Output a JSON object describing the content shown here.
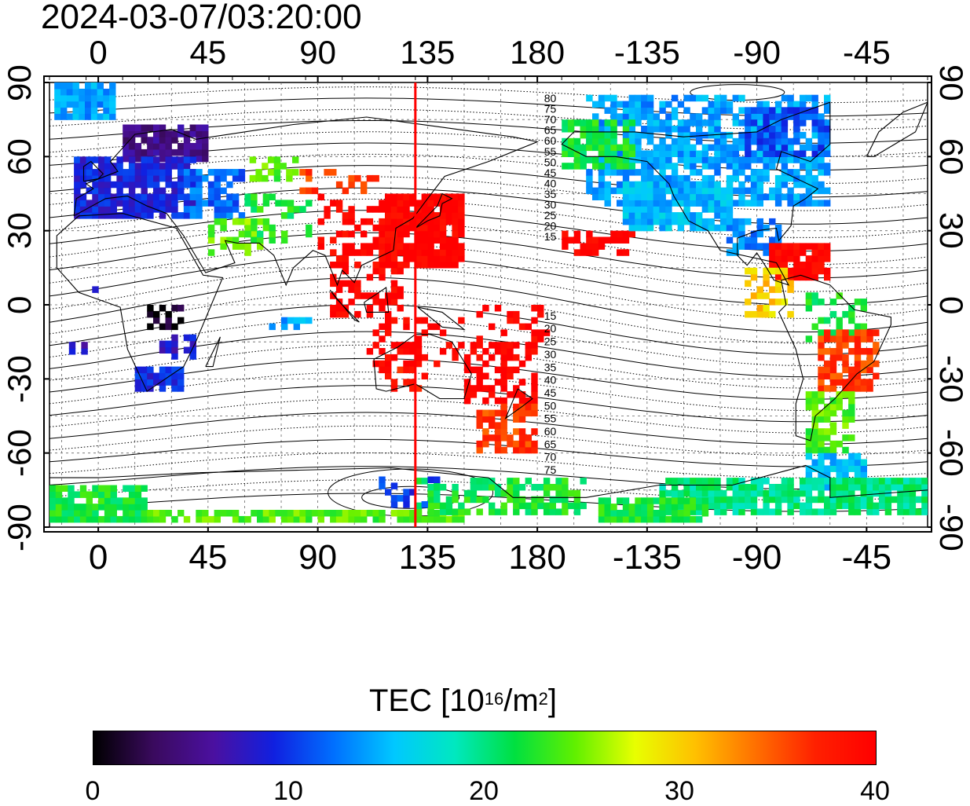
{
  "title": "2024-03-07/03:20:00",
  "top_lon_labels": [
    "0",
    "45",
    "90",
    "135",
    "180",
    "-135",
    "-90",
    "-45"
  ],
  "bottom_lon_labels": [
    "0",
    "45",
    "90",
    "135",
    "180",
    "-135",
    "-90",
    "-45"
  ],
  "left_lat_labels": [
    "90",
    "60",
    "30",
    "0",
    "-30",
    "-60",
    "-90"
  ],
  "right_lat_labels": [
    "90",
    "60",
    "30",
    "0",
    "-30",
    "-60",
    "-90"
  ],
  "lat_values": [
    90,
    60,
    30,
    0,
    -30,
    -60,
    -90
  ],
  "lon_values": [
    0,
    45,
    90,
    135,
    180,
    225,
    270,
    315
  ],
  "map": {
    "lon_range": [
      -20,
      340
    ],
    "lat_range": [
      -90,
      90
    ],
    "meridian_marker_lon": 130,
    "marker_color": "#ff0000",
    "grid": true
  },
  "contour_labels_upper": [
    "80",
    "75",
    "70",
    "65",
    "60",
    "55",
    "50",
    "45",
    "40",
    "35",
    "30",
    "25",
    "20",
    "15"
  ],
  "contour_labels_lower": [
    "15",
    "20",
    "25",
    "30",
    "35",
    "40",
    "45",
    "50",
    "55",
    "60",
    "65",
    "70",
    "75"
  ],
  "colorbar": {
    "title_prefix": "TEC  [10",
    "title_sup1": "16",
    "title_mid": "/m",
    "title_sup2": "2",
    "title_suffix": "]",
    "min": 0,
    "max": 40,
    "labels": [
      "0",
      "10",
      "20",
      "30",
      "40"
    ],
    "stops": [
      "#000000",
      "#3a0a5e",
      "#4b10a0",
      "#1020e0",
      "#0070ff",
      "#00c8ff",
      "#00e8c0",
      "#00e040",
      "#60f000",
      "#e8ff00",
      "#ffc000",
      "#ff7000",
      "#ff2000",
      "#ff0000"
    ]
  }
}
